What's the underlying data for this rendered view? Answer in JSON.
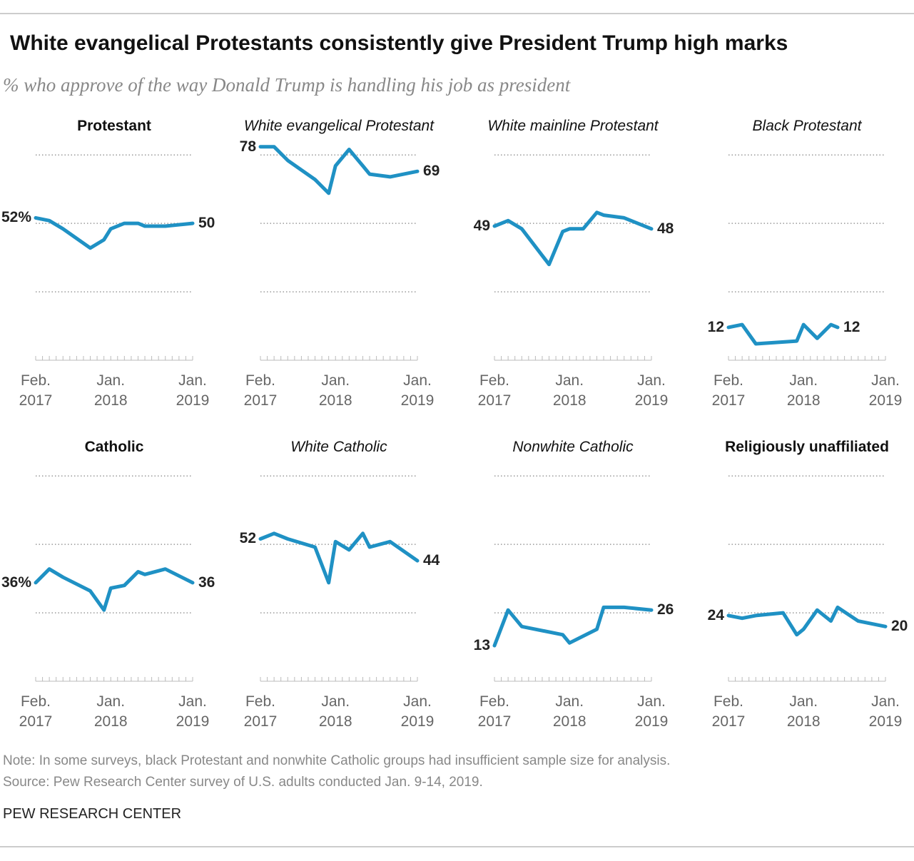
{
  "header": {
    "title": "White evangelical Protestants consistently give President Trump high marks",
    "subtitle": "% who approve of the way Donald Trump is handling his job as president"
  },
  "chart_data": [
    {
      "type": "line",
      "title": "Protestant",
      "title_style": "bold",
      "x": [
        "2017-02",
        "2017-04",
        "2017-06",
        "2017-10",
        "2017-12",
        "2018-01",
        "2018-03",
        "2018-05",
        "2018-06",
        "2018-09",
        "2019-01"
      ],
      "values": [
        52,
        51,
        48,
        41,
        44,
        48,
        50,
        50,
        49,
        49,
        50
      ],
      "value_labels": [
        "52%",
        null,
        null,
        null,
        null,
        null,
        null,
        null,
        null,
        null,
        "50"
      ],
      "color": "#1f91c4",
      "xlim": [
        "2017-02",
        "2019-01"
      ],
      "xticks": [
        {
          "value": "2017-02",
          "label": "Feb.\n2017"
        },
        {
          "value": "2018-01",
          "label": "Jan.\n2018"
        },
        {
          "value": "2019-01",
          "label": "Jan.\n2019"
        }
      ],
      "ylim": [
        0,
        80
      ],
      "yticks": [
        25,
        50,
        75
      ],
      "grid": true
    },
    {
      "type": "line",
      "title": "White evangelical Protestant",
      "title_style": "italic",
      "x": [
        "2017-02",
        "2017-04",
        "2017-06",
        "2017-10",
        "2017-12",
        "2018-01",
        "2018-03",
        "2018-05",
        "2018-06",
        "2018-09",
        "2019-01"
      ],
      "values": [
        78,
        78,
        73,
        66,
        61,
        71,
        77,
        71,
        68,
        67,
        69
      ],
      "value_labels": [
        "78",
        null,
        null,
        null,
        null,
        null,
        null,
        null,
        null,
        null,
        "69"
      ],
      "color": "#1f91c4",
      "xlim": [
        "2017-02",
        "2019-01"
      ],
      "xticks": [
        {
          "value": "2017-02",
          "label": "Feb.\n2017"
        },
        {
          "value": "2018-01",
          "label": "Jan.\n2018"
        },
        {
          "value": "2019-01",
          "label": "Jan.\n2019"
        }
      ],
      "ylim": [
        0,
        80
      ],
      "yticks": [
        25,
        50,
        75
      ],
      "grid": true
    },
    {
      "type": "line",
      "title": "White mainline Protestant",
      "title_style": "italic",
      "x": [
        "2017-02",
        "2017-04",
        "2017-06",
        "2017-10",
        "2017-12",
        "2018-01",
        "2018-03",
        "2018-05",
        "2018-06",
        "2018-09",
        "2019-01"
      ],
      "values": [
        49,
        51,
        48,
        35,
        47,
        48,
        48,
        54,
        53,
        52,
        48
      ],
      "value_labels": [
        "49",
        null,
        null,
        null,
        null,
        null,
        null,
        null,
        null,
        null,
        "48"
      ],
      "color": "#1f91c4",
      "xlim": [
        "2017-02",
        "2019-01"
      ],
      "xticks": [
        {
          "value": "2017-02",
          "label": "Feb.\n2017"
        },
        {
          "value": "2018-01",
          "label": "Jan.\n2018"
        },
        {
          "value": "2019-01",
          "label": "Jan.\n2019"
        }
      ],
      "ylim": [
        0,
        80
      ],
      "yticks": [
        25,
        50,
        75
      ],
      "grid": true
    },
    {
      "type": "line",
      "title": "Black Protestant",
      "title_style": "italic",
      "x": [
        "2017-02",
        "2017-04",
        "2017-06",
        "2017-12",
        "2018-01",
        "2018-03",
        "2018-05",
        "2018-06"
      ],
      "values": [
        12,
        13,
        6,
        7,
        13,
        8,
        13,
        12
      ],
      "value_labels": [
        "12",
        null,
        null,
        null,
        null,
        null,
        null,
        "12"
      ],
      "color": "#1f91c4",
      "xlim": [
        "2017-02",
        "2019-01"
      ],
      "xticks": [
        {
          "value": "2017-02",
          "label": "Feb.\n2017"
        },
        {
          "value": "2018-01",
          "label": "Jan.\n2018"
        },
        {
          "value": "2019-01",
          "label": "Jan.\n2019"
        }
      ],
      "ylim": [
        0,
        80
      ],
      "yticks": [
        25,
        50,
        75
      ],
      "grid": true
    },
    {
      "type": "line",
      "title": "Catholic",
      "title_style": "bold",
      "x": [
        "2017-02",
        "2017-04",
        "2017-06",
        "2017-10",
        "2017-12",
        "2018-01",
        "2018-03",
        "2018-05",
        "2018-06",
        "2018-09",
        "2019-01"
      ],
      "values": [
        36,
        41,
        38,
        33,
        26,
        34,
        35,
        40,
        39,
        41,
        36
      ],
      "value_labels": [
        "36%",
        null,
        null,
        null,
        null,
        null,
        null,
        null,
        null,
        null,
        "36"
      ],
      "color": "#1f91c4",
      "xlim": [
        "2017-02",
        "2019-01"
      ],
      "xticks": [
        {
          "value": "2017-02",
          "label": "Feb.\n2017"
        },
        {
          "value": "2018-01",
          "label": "Jan.\n2018"
        },
        {
          "value": "2019-01",
          "label": "Jan.\n2019"
        }
      ],
      "ylim": [
        0,
        80
      ],
      "yticks": [
        25,
        50,
        75
      ],
      "grid": true
    },
    {
      "type": "line",
      "title": "White Catholic",
      "title_style": "italic",
      "x": [
        "2017-02",
        "2017-04",
        "2017-06",
        "2017-10",
        "2017-12",
        "2018-01",
        "2018-03",
        "2018-05",
        "2018-06",
        "2018-09",
        "2019-01"
      ],
      "values": [
        52,
        54,
        52,
        49,
        36,
        51,
        48,
        54,
        49,
        51,
        44
      ],
      "value_labels": [
        "52",
        null,
        null,
        null,
        null,
        null,
        null,
        null,
        null,
        null,
        "44"
      ],
      "color": "#1f91c4",
      "xlim": [
        "2017-02",
        "2019-01"
      ],
      "xticks": [
        {
          "value": "2017-02",
          "label": "Feb.\n2017"
        },
        {
          "value": "2018-01",
          "label": "Jan.\n2018"
        },
        {
          "value": "2019-01",
          "label": "Jan.\n2019"
        }
      ],
      "ylim": [
        0,
        80
      ],
      "yticks": [
        25,
        50,
        75
      ],
      "grid": true
    },
    {
      "type": "line",
      "title": "Nonwhite Catholic",
      "title_style": "italic",
      "x": [
        "2017-02",
        "2017-04",
        "2017-06",
        "2017-12",
        "2018-01",
        "2018-05",
        "2018-06",
        "2018-09",
        "2019-01"
      ],
      "values": [
        13,
        26,
        20,
        17,
        14,
        19,
        27,
        27,
        26
      ],
      "value_labels": [
        "13",
        null,
        null,
        null,
        null,
        null,
        null,
        null,
        "26"
      ],
      "color": "#1f91c4",
      "xlim": [
        "2017-02",
        "2019-01"
      ],
      "xticks": [
        {
          "value": "2017-02",
          "label": "Feb.\n2017"
        },
        {
          "value": "2018-01",
          "label": "Jan.\n2018"
        },
        {
          "value": "2019-01",
          "label": "Jan.\n2019"
        }
      ],
      "ylim": [
        0,
        80
      ],
      "yticks": [
        25,
        50,
        75
      ],
      "grid": true
    },
    {
      "type": "line",
      "title": "Religiously unaffiliated",
      "title_style": "bold",
      "x": [
        "2017-02",
        "2017-04",
        "2017-06",
        "2017-10",
        "2017-12",
        "2018-01",
        "2018-03",
        "2018-05",
        "2018-06",
        "2018-09",
        "2019-01"
      ],
      "values": [
        24,
        23,
        24,
        25,
        17,
        19,
        26,
        22,
        27,
        22,
        20
      ],
      "value_labels": [
        "24",
        null,
        null,
        null,
        null,
        null,
        null,
        null,
        null,
        null,
        "20"
      ],
      "color": "#1f91c4",
      "xlim": [
        "2017-02",
        "2019-01"
      ],
      "xticks": [
        {
          "value": "2017-02",
          "label": "Feb.\n2017"
        },
        {
          "value": "2018-01",
          "label": "Jan.\n2018"
        },
        {
          "value": "2019-01",
          "label": "Jan.\n2019"
        }
      ],
      "ylim": [
        0,
        80
      ],
      "yticks": [
        25,
        50,
        75
      ],
      "grid": true
    }
  ],
  "footer": {
    "note": "Note: In some surveys, black Protestant and nonwhite Catholic groups had insufficient sample size for analysis.",
    "source": "Source: Pew Research Center survey of U.S. adults conducted Jan. 9-14, 2019.",
    "credit": "PEW RESEARCH CENTER"
  }
}
